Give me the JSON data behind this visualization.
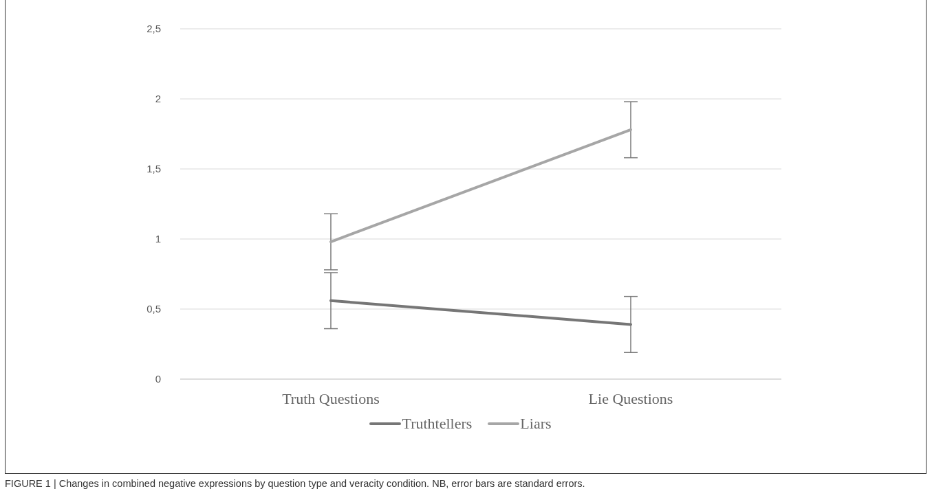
{
  "chart_data": {
    "type": "line",
    "categories": [
      "Truth Questions",
      "Lie Questions"
    ],
    "series": [
      {
        "name": "Truthtellers",
        "color": "#767676",
        "values": [
          0.56,
          0.39
        ],
        "errors": [
          0.2,
          0.2
        ]
      },
      {
        "name": "Liars",
        "color": "#a6a6a6",
        "values": [
          0.98,
          1.78
        ],
        "errors": [
          0.2,
          0.2
        ]
      }
    ],
    "ylim": [
      0,
      2.5
    ],
    "yticks": [
      0,
      {
        "value": 0.5,
        "label": "0,5"
      },
      1,
      {
        "value": 1.5,
        "label": "1,5"
      },
      2,
      {
        "value": 2.5,
        "label": "2,5"
      }
    ],
    "grid": "y",
    "legend": "bottom",
    "marker": "none",
    "line_style": "solid",
    "annotations": [
      "FIGURE 1 | Changes in combined negative expressions by question type and veracity condition. NB, error bars are standard errors."
    ]
  }
}
